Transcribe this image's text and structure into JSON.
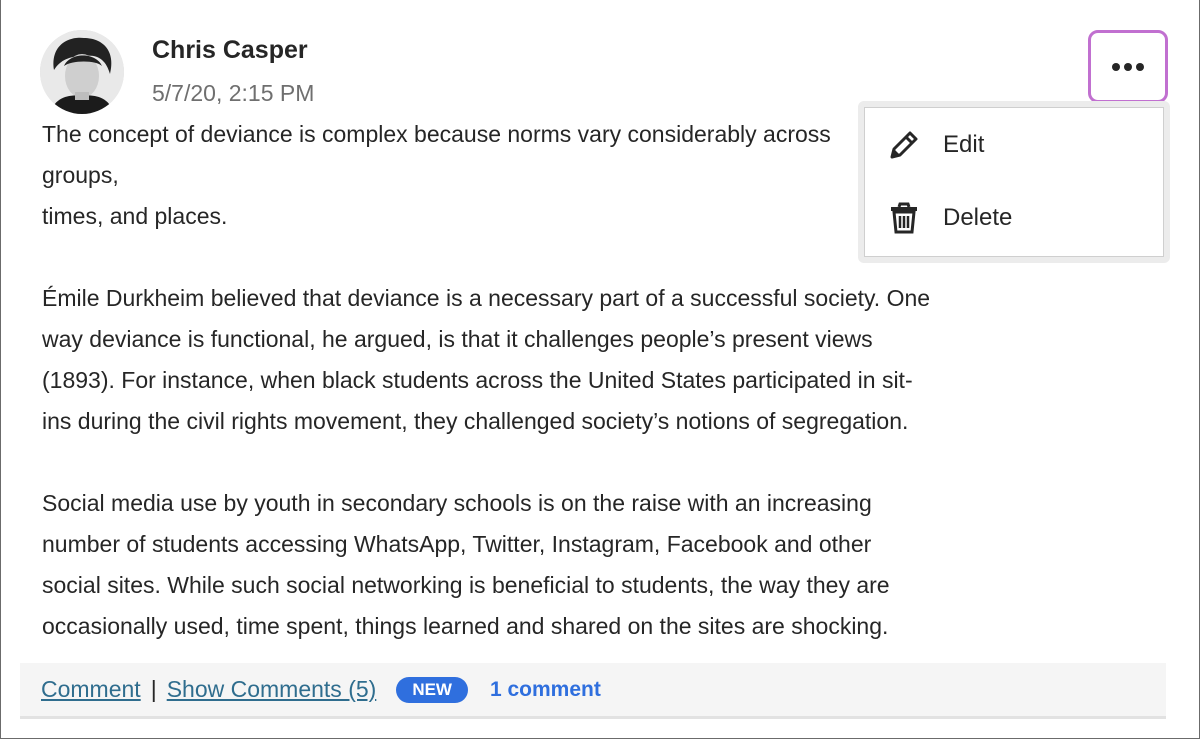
{
  "post": {
    "author": "Chris Casper",
    "date": "5/7/20, 2:15 PM",
    "paragraphs": [
      [
        "The concept of deviance is complex because norms vary considerably across groups,",
        "times, and places."
      ],
      [
        "Émile Durkheim believed that deviance is a necessary part of a successful society. One",
        "way deviance is functional, he argued, is that it challenges people’s present views",
        "(1893). For instance, when black students across the United States participated in sit-",
        "ins during the civil rights movement, they challenged society’s notions of segregation."
      ],
      [
        "Social media use by youth in secondary schools is on the raise with an increasing",
        "number of students accessing WhatsApp, Twitter, Instagram, Facebook and other",
        "social sites. While such social networking is beneficial to students, the way they are",
        "occasionally used, time spent, things learned and shared on the sites are shocking."
      ]
    ]
  },
  "menu": {
    "button_icon": "more-horizontal-icon",
    "items": [
      {
        "label": "Edit",
        "icon": "pencil-icon"
      },
      {
        "label": "Delete",
        "icon": "trash-icon"
      }
    ]
  },
  "footer": {
    "comment_link": "Comment",
    "separator": "|",
    "show_comments_link": "Show Comments (5)",
    "badge": "NEW",
    "new_count": "1 comment"
  },
  "colors": {
    "focus_ring": "#c170d0",
    "badge": "#2f6fde",
    "link": "#2f6d8e"
  }
}
